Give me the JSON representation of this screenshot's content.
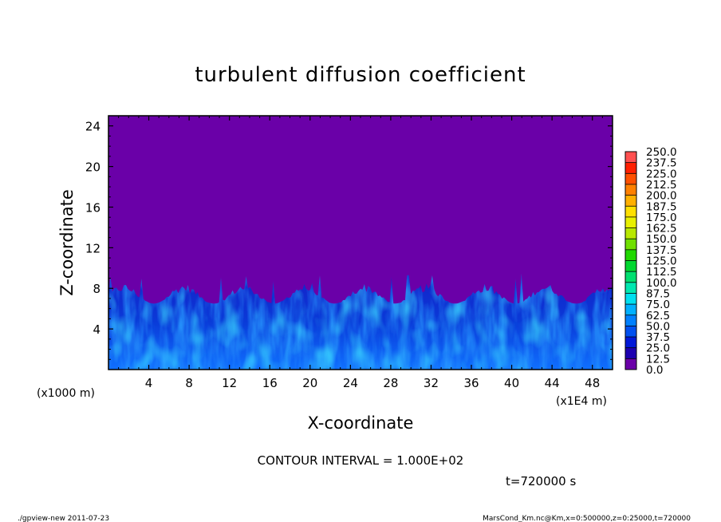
{
  "chart_data": {
    "type": "heatmap",
    "title": "turbulent diffusion coefficient",
    "xlabel": "X-coordinate",
    "ylabel": "Z-coordinate",
    "y_unit": "(x1000 m)",
    "x_unit": "(x1E4 m)",
    "xlim": [
      0,
      50
    ],
    "ylim": [
      0,
      25
    ],
    "x_ticks": [
      "4",
      "8",
      "12",
      "16",
      "20",
      "24",
      "28",
      "32",
      "36",
      "40",
      "44",
      "48"
    ],
    "y_ticks": [
      "4",
      "8",
      "12",
      "16",
      "20",
      "24"
    ],
    "colorbar_levels": [
      "0.0",
      "12.5",
      "25.0",
      "37.5",
      "50.0",
      "62.5",
      "75.0",
      "87.5",
      "100.0",
      "112.5",
      "125.0",
      "137.5",
      "150.0",
      "162.5",
      "175.0",
      "187.5",
      "200.0",
      "212.5",
      "225.0",
      "237.5",
      "250.0"
    ],
    "colorbar_colors": [
      "#6a00a8",
      "#1c00b0",
      "#0018d8",
      "#0050f0",
      "#0080ff",
      "#00b0ff",
      "#00e0f0",
      "#00e8b0",
      "#00e070",
      "#00d830",
      "#20d800",
      "#70e000",
      "#b8e800",
      "#e8f000",
      "#ffe000",
      "#ffb000",
      "#ff8000",
      "#ff5000",
      "#ff2000",
      "#ff5050",
      "#ff9090"
    ],
    "field_description_values": {
      "background_value": "0.0",
      "boundary_layer_top_z": [
        6.5,
        8.5
      ],
      "max_plume_z": 9.5
    },
    "contour_interval": "CONTOUR INTERVAL = 1.000E+02",
    "time_label": "t=720000 s"
  },
  "footer": {
    "left": "./gpview-new   2011-07-23",
    "right": "MarsCond_Km.nc@Km,x=0:500000,z=0:25000,t=720000"
  }
}
